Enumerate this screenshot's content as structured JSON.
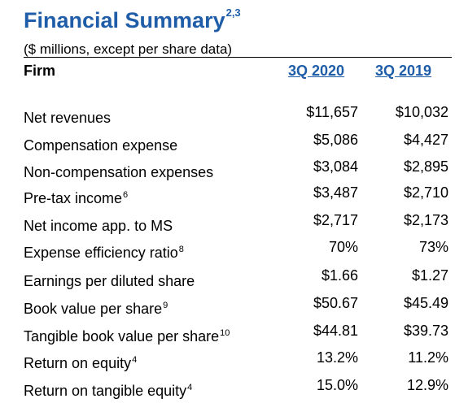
{
  "header": {
    "title": "Financial Summary",
    "title_footnote": "2,3",
    "subtitle": "($ millions, except per share data)",
    "firm_label": "Firm",
    "columns": [
      "3Q 2020",
      "3Q 2019"
    ]
  },
  "colors": {
    "accent": "#1f5da8",
    "text": "#000000"
  },
  "rows": [
    {
      "label": "Net revenues",
      "footnote": "",
      "q3_2020": "$11,657",
      "q3_2019": "$10,032"
    },
    {
      "label": "Compensation expense",
      "footnote": "",
      "q3_2020": "$5,086",
      "q3_2019": "$4,427"
    },
    {
      "label": "Non-compensation expenses",
      "footnote": "",
      "q3_2020": "$3,084",
      "q3_2019": "$2,895"
    },
    {
      "label": "Pre-tax income",
      "footnote": "6",
      "q3_2020": "$3,487",
      "q3_2019": "$2,710"
    },
    {
      "label": "Net income app. to MS",
      "footnote": "",
      "q3_2020": "$2,717",
      "q3_2019": "$2,173"
    },
    {
      "label": "Expense efficiency ratio",
      "footnote": "8",
      "q3_2020": "70%",
      "q3_2019": "73%"
    },
    {
      "label": "Earnings per diluted share",
      "footnote": "",
      "q3_2020": "$1.66",
      "q3_2019": "$1.27"
    },
    {
      "label": "Book value per share",
      "footnote": "9",
      "q3_2020": "$50.67",
      "q3_2019": "$45.49"
    },
    {
      "label": "Tangible book value per share",
      "footnote": "10",
      "q3_2020": "$44.81",
      "q3_2019": "$39.73"
    },
    {
      "label": "Return on equity",
      "footnote": "4",
      "q3_2020": "13.2%",
      "q3_2019": "11.2%"
    },
    {
      "label": "Return on tangible equity",
      "footnote": "4",
      "q3_2020": "15.0%",
      "q3_2019": "12.9%"
    }
  ]
}
